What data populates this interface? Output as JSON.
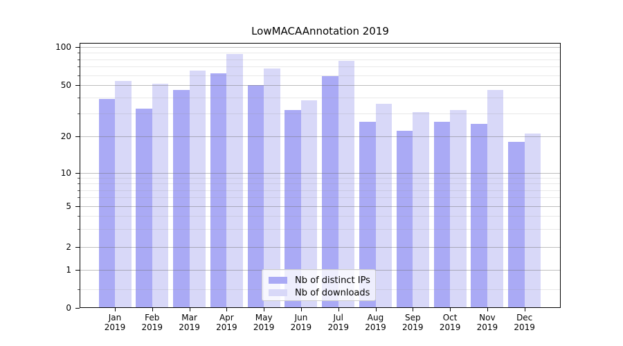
{
  "chart_data": {
    "type": "bar",
    "title": "LowMACAAnnotation 2019",
    "categories": [
      "Jan",
      "Feb",
      "Mar",
      "Apr",
      "May",
      "Jun",
      "Jul",
      "Aug",
      "Sep",
      "Oct",
      "Nov",
      "Dec"
    ],
    "category_year": "2019",
    "series": [
      {
        "name": "Nb of distinct IPs",
        "color": "#aaaaf5",
        "values": [
          39,
          33,
          46,
          62,
          50,
          32,
          59,
          26,
          22,
          26,
          25,
          18
        ]
      },
      {
        "name": "Nb of downloads",
        "color": "#d8d8f8",
        "values": [
          54,
          51,
          65,
          88,
          68,
          38,
          78,
          36,
          31,
          32,
          46,
          21
        ]
      }
    ],
    "xlabel": "",
    "ylabel": "",
    "yscale": "log-like",
    "y_ticks": [
      0,
      1,
      2,
      5,
      10,
      20,
      50,
      100
    ],
    "y_minor_gridlines": [
      0.5,
      3,
      4,
      6,
      7,
      8,
      9,
      30,
      40,
      60,
      70,
      80,
      90
    ],
    "ylim": [
      0,
      108
    ],
    "grid": "horizontal major and minor gridlines drawn over bars",
    "legend_position": "lower center"
  }
}
